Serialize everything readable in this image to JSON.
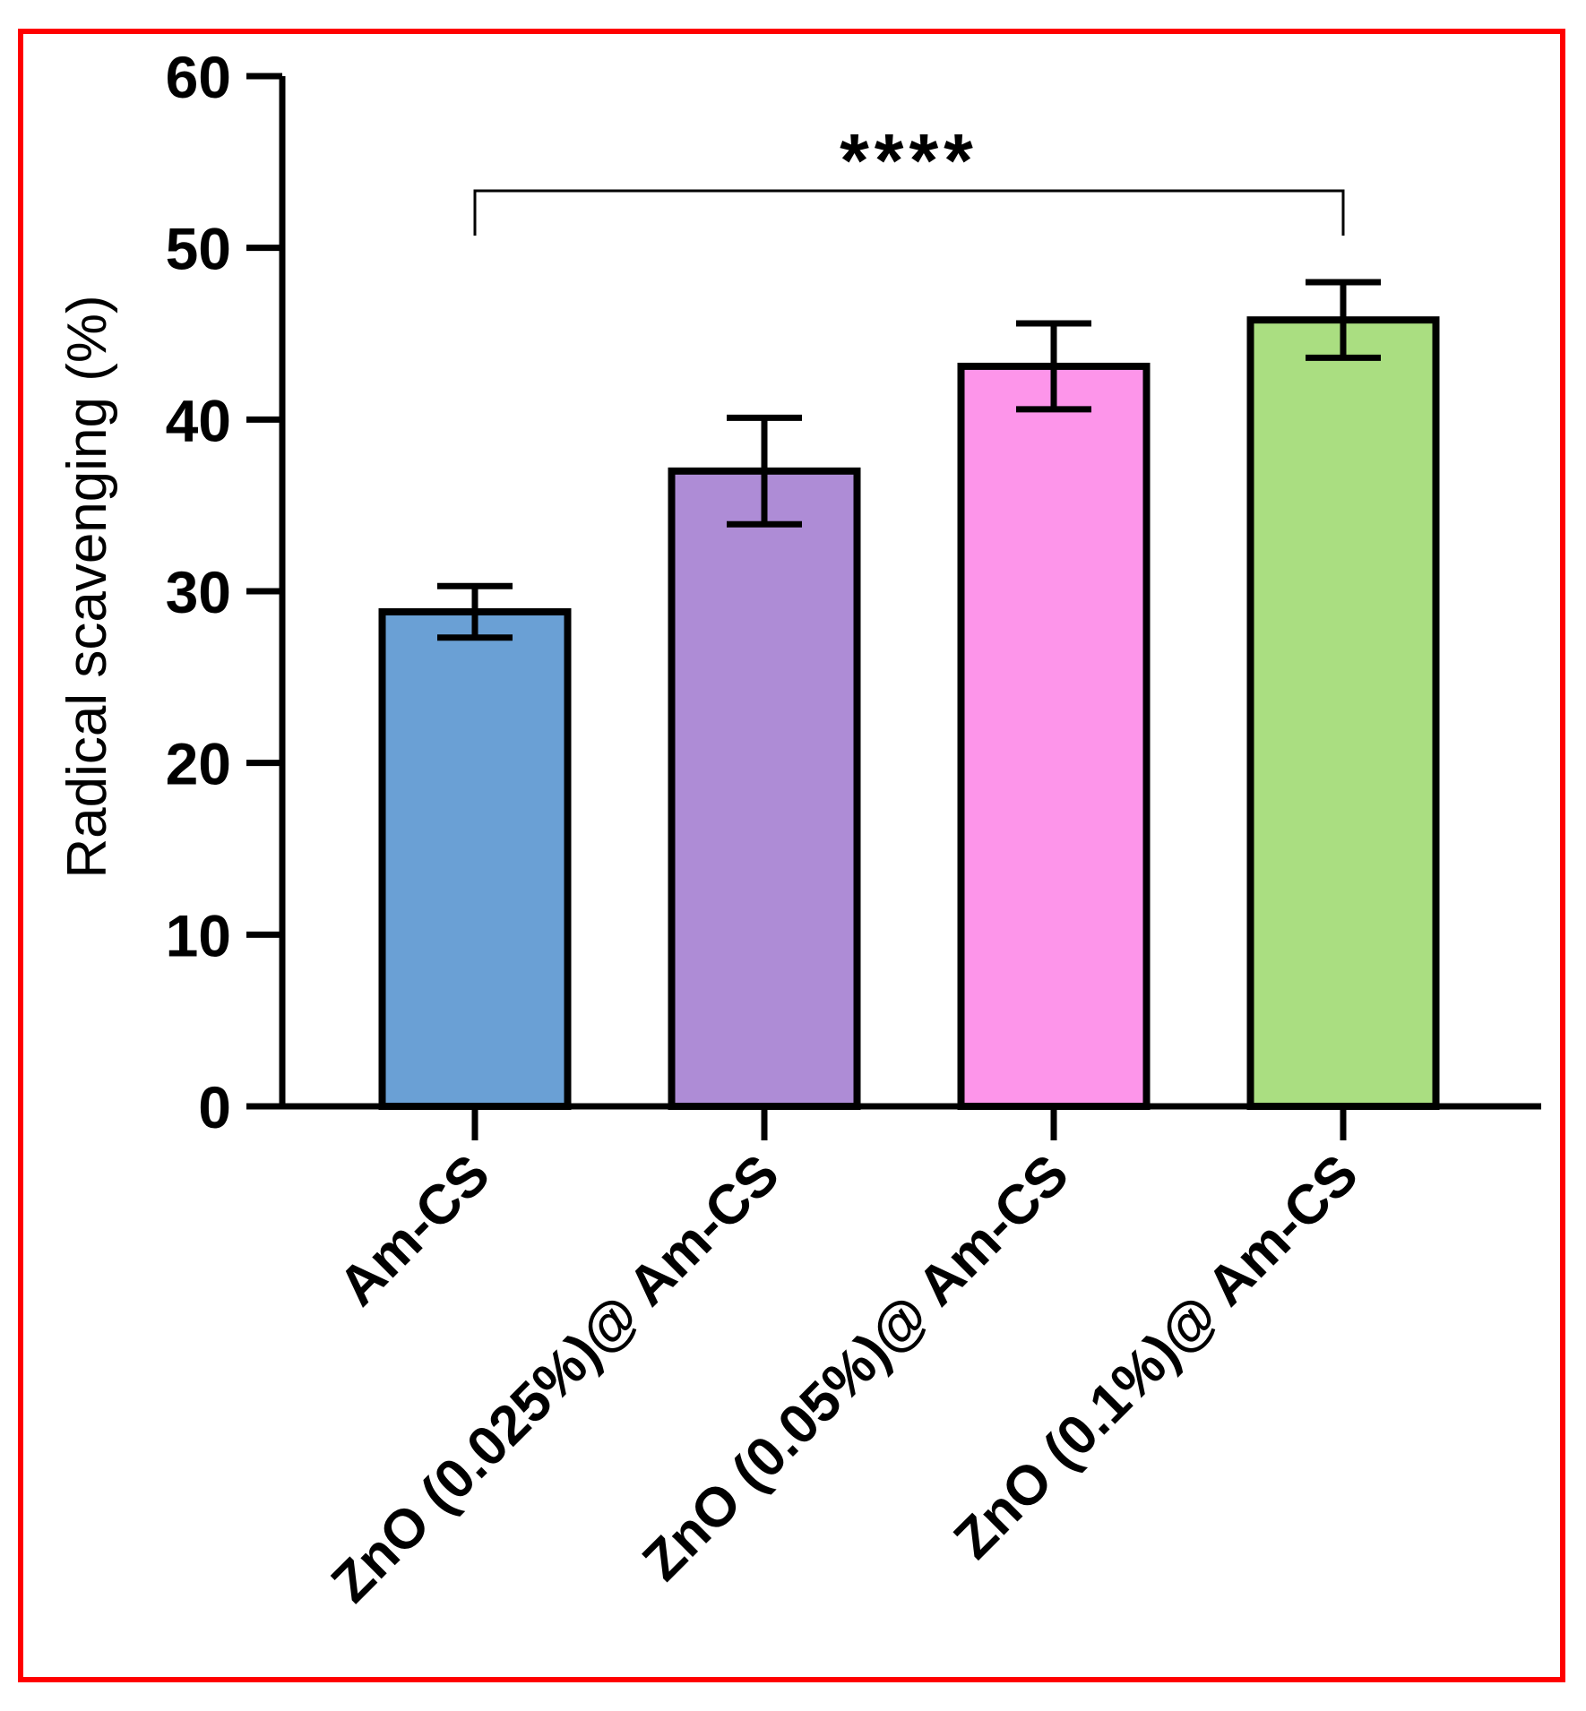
{
  "chart_data": {
    "type": "bar",
    "title": "",
    "xlabel": "",
    "ylabel": "Radical scavenging (%)",
    "ylim": [
      0,
      60
    ],
    "yticks": [
      "0",
      "10",
      "20",
      "30",
      "40",
      "50",
      "60"
    ],
    "grid": false,
    "categories": [
      "Am-CS",
      "ZnO (0.025%)@ Am-CS",
      "ZnO (0.05%)@ Am-CS",
      "ZnO (0.1%)@ Am-CS"
    ],
    "values": [
      28.8,
      37.0,
      43.1,
      45.8
    ],
    "errors": [
      1.5,
      3.1,
      2.5,
      2.2
    ],
    "colors": [
      "#6aa0d5",
      "#ae8cd6",
      "#fd95ea",
      "#aade81"
    ],
    "significance": {
      "from": 0,
      "to": 3,
      "label": "****"
    }
  },
  "frame_color": "#ff0000"
}
